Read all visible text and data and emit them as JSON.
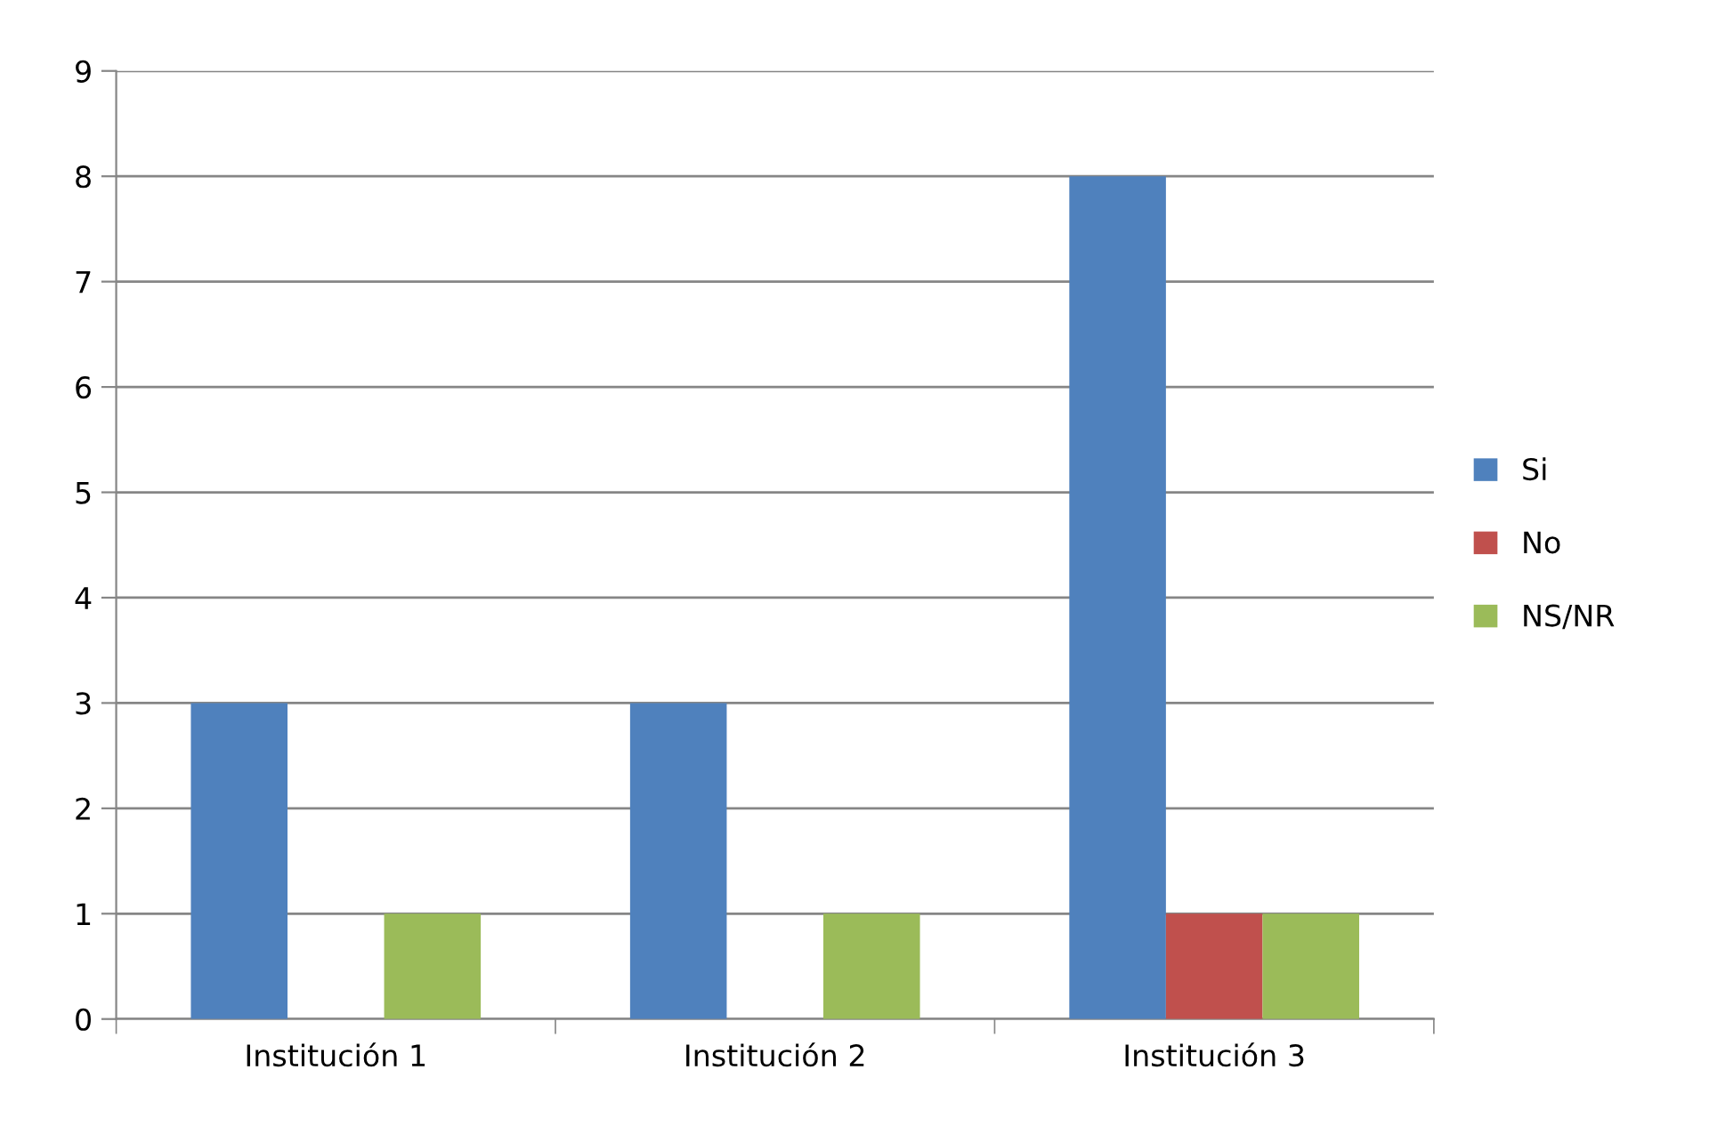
{
  "chart_data": {
    "type": "bar",
    "categories": [
      "Institución 1",
      "Institución 2",
      "Institución 3"
    ],
    "series": [
      {
        "name": "Si",
        "color": "#4f81bd",
        "values": [
          3,
          3,
          8
        ]
      },
      {
        "name": "No",
        "color": "#c0504d",
        "values": [
          0,
          0,
          1
        ]
      },
      {
        "name": "NS/NR",
        "color": "#9bbb59",
        "values": [
          1,
          1,
          1
        ]
      }
    ],
    "ylim": [
      0,
      9
    ],
    "yticks": [
      0,
      1,
      2,
      3,
      4,
      5,
      6,
      7,
      8,
      9
    ],
    "grid": "y",
    "legend": "right"
  }
}
